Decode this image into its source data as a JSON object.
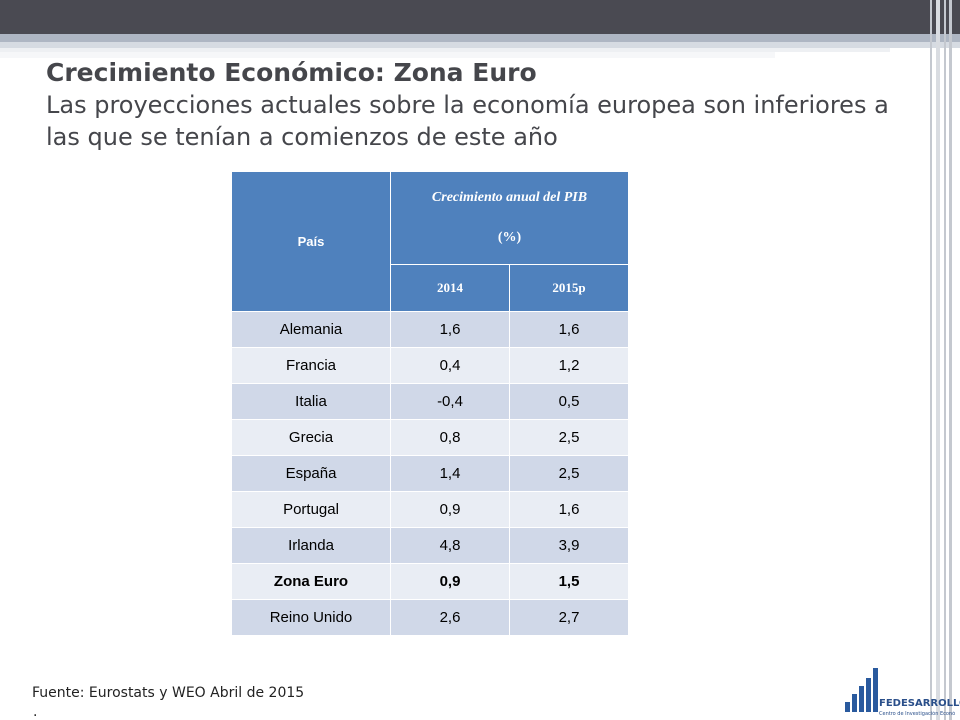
{
  "title": {
    "heading": "Crecimiento Económico: Zona Euro",
    "subheading": "Las proyecciones actuales sobre la economía europea son inferiores a las que se tenían a comienzos de este año"
  },
  "table": {
    "col_pais": "País",
    "col_growth": "Crecimiento anual del PIB",
    "col_unit": "(%)",
    "years": [
      "2014",
      "2015p"
    ],
    "rows": [
      {
        "pais": "Alemania",
        "v2014": "1,6",
        "v2015": "1,6"
      },
      {
        "pais": "Francia",
        "v2014": "0,4",
        "v2015": "1,2"
      },
      {
        "pais": "Italia",
        "v2014": "-0,4",
        "v2015": "0,5"
      },
      {
        "pais": "Grecia",
        "v2014": "0,8",
        "v2015": "2,5"
      },
      {
        "pais": "España",
        "v2014": "1,4",
        "v2015": "2,5"
      },
      {
        "pais": "Portugal",
        "v2014": "0,9",
        "v2015": "1,6"
      },
      {
        "pais": "Irlanda",
        "v2014": "4,8",
        "v2015": "3,9"
      },
      {
        "pais": "Zona Euro",
        "v2014": "0,9",
        "v2015": "1,5"
      },
      {
        "pais": "Reino Unido",
        "v2014": "2,6",
        "v2015": "2,7"
      }
    ]
  },
  "footer": {
    "source": "Fuente: Eurostats y WEO Abril de 2015",
    "dot": "."
  },
  "logo": {
    "name": "FEDESARROLLO",
    "tagline": "Centro de Investigación Económica y Social"
  },
  "colors": {
    "header_blue": "#4f81bd",
    "row_dark": "#d0d8e8",
    "row_light": "#e9edf4",
    "title_gray": "#45464b"
  }
}
